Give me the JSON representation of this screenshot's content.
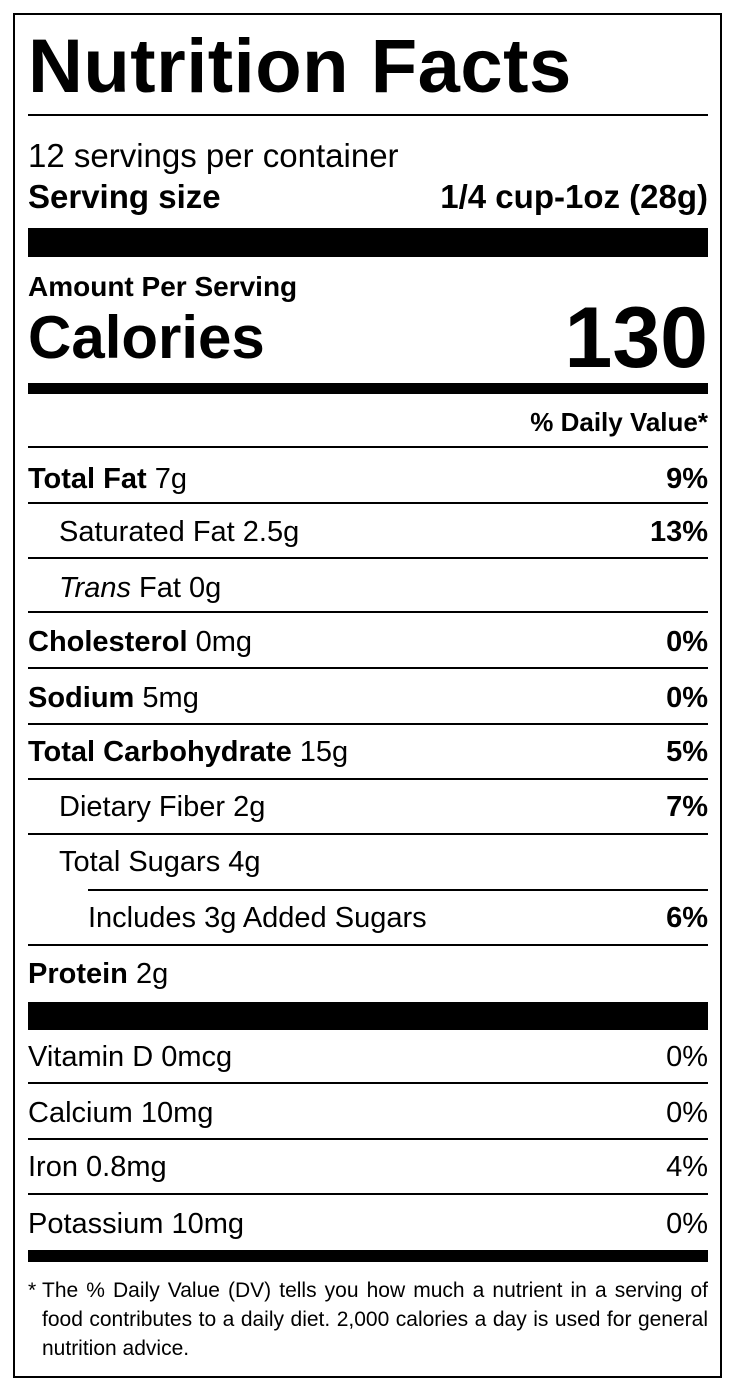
{
  "title": "Nutrition Facts",
  "servings": "12 servings per container",
  "serving_size": {
    "label": "Serving size",
    "value": "1/4 cup-1oz (28g)"
  },
  "amount_per_serving": "Amount Per Serving",
  "calories": {
    "label": "Calories",
    "value": "130"
  },
  "daily_value_header": "% Daily Value*",
  "nutrients": [
    {
      "name": "Total Fat",
      "amount": "7g",
      "dv": "9%"
    },
    {
      "name": "Saturated Fat",
      "amount": "2.5g",
      "dv": "13%"
    },
    {
      "name_italic": "Trans",
      "name": "Fat",
      "amount": "0g"
    },
    {
      "name": "Cholesterol",
      "amount": "0mg",
      "dv": "0%"
    },
    {
      "name": "Sodium",
      "amount": "5mg",
      "dv": "0%"
    },
    {
      "name": "Total Carbohydrate",
      "amount": "15g",
      "dv": "5%"
    },
    {
      "name": "Dietary Fiber",
      "amount": "2g",
      "dv": "7%"
    },
    {
      "name": "Total Sugars",
      "amount": "4g"
    },
    {
      "prefix": "Includes",
      "amount": "3g",
      "name": "Added Sugars",
      "dv": "6%"
    },
    {
      "name": "Protein",
      "amount": "2g"
    }
  ],
  "vitamins": [
    {
      "name": "Vitamin D",
      "amount": "0mcg",
      "dv": "0%"
    },
    {
      "name": "Calcium",
      "amount": "10mg",
      "dv": "0%"
    },
    {
      "name": "Iron",
      "amount": "0.8mg",
      "dv": "4%"
    },
    {
      "name": "Potassium",
      "amount": "10mg",
      "dv": "0%"
    }
  ],
  "footnote": {
    "marker": "*",
    "text": "The % Daily Value (DV) tells you how much a nutrient in a serving of food contributes to a daily diet. 2,000 calories a day is used for general nutrition advice."
  }
}
